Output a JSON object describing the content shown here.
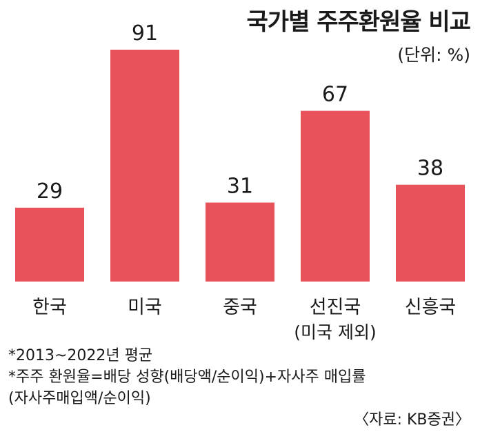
{
  "chart_data": {
    "type": "bar",
    "title": "국가별 주주환원율 비교",
    "unit_label": "(단위: %)",
    "categories": [
      "한국",
      "미국",
      "중국",
      "선진국",
      "신흥국"
    ],
    "category_sublabels": [
      "",
      "",
      "",
      "(미국 제외)",
      ""
    ],
    "values": [
      29,
      91,
      31,
      67,
      38
    ],
    "xlabel": "",
    "ylabel": "",
    "ylim": [
      0,
      91
    ],
    "grid": false,
    "bar_color": "#e8525a"
  },
  "notes": [
    "*2013~2022년 평균",
    "*주주 환원율=배당 성향(배당액/순이익)+자사주 매입률",
    "(자사주매입액/순이익)"
  ],
  "source": "〈자료: KB증권〉"
}
